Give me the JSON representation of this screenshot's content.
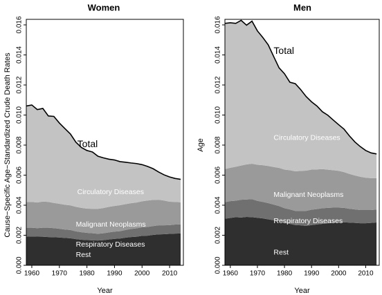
{
  "colors": {
    "rest": "#2f2f2f",
    "respiratory": "#707070",
    "malignant": "#9a9a9a",
    "circulatory": "#c3c3c3",
    "total_line": "#000000",
    "dark_label": "#ffffff",
    "light_label": "#ffffff"
  },
  "chart_data": [
    {
      "type": "area",
      "title": "Women",
      "xlabel": "Year",
      "ylabel": "Cause−Specific Age−Standardized Crude Death Rates",
      "xlim": [
        1958,
        2015
      ],
      "ylim": [
        0,
        0.016
      ],
      "xticks": [
        "1960",
        "1970",
        "1980",
        "1990",
        "2000",
        "2010"
      ],
      "yticks": [
        "0.000",
        "0.002",
        "0.004",
        "0.006",
        "0.008",
        "0.010",
        "0.012",
        "0.014",
        "0.016"
      ],
      "x": [
        1958,
        1960,
        1962,
        1964,
        1966,
        1968,
        1970,
        1972,
        1974,
        1976,
        1978,
        1980,
        1982,
        1984,
        1986,
        1988,
        1990,
        1992,
        1994,
        1996,
        1998,
        2000,
        2002,
        2004,
        2006,
        2008,
        2010,
        2012,
        2014
      ],
      "series": [
        {
          "name": "Rest",
          "values": [
            0.0019,
            0.00192,
            0.00191,
            0.0019,
            0.00188,
            0.00187,
            0.00185,
            0.00182,
            0.0018,
            0.00174,
            0.0017,
            0.00168,
            0.00166,
            0.00165,
            0.00167,
            0.00172,
            0.00176,
            0.00178,
            0.00184,
            0.00188,
            0.0019,
            0.00196,
            0.00197,
            0.00202,
            0.00206,
            0.00207,
            0.00209,
            0.00211,
            0.00212
          ]
        },
        {
          "name": "Respiratory Diseases",
          "values": [
            0.0006,
            0.00058,
            0.00056,
            0.0006,
            0.00062,
            0.0006,
            0.00058,
            0.00056,
            0.00055,
            0.00052,
            0.0005,
            0.00048,
            0.00047,
            0.00045,
            0.00046,
            0.00047,
            0.00048,
            0.00049,
            0.00051,
            0.00054,
            0.00056,
            0.00057,
            0.00058,
            0.00059,
            0.0006,
            0.00059,
            0.00058,
            0.0006,
            0.0006
          ]
        },
        {
          "name": "Malignant Neoplasms",
          "values": [
            0.0017,
            0.00172,
            0.00171,
            0.00174,
            0.00172,
            0.00168,
            0.00166,
            0.00165,
            0.00164,
            0.00163,
            0.00162,
            0.00161,
            0.00163,
            0.00166,
            0.00168,
            0.0017,
            0.00171,
            0.00173,
            0.00172,
            0.00171,
            0.00172,
            0.00173,
            0.00176,
            0.00174,
            0.0017,
            0.00165,
            0.00156,
            0.00151,
            0.00147
          ]
        },
        {
          "name": "Circulatory Diseases",
          "values": [
            0.0064,
            0.00645,
            0.00618,
            0.0062,
            0.00572,
            0.00576,
            0.00538,
            0.00507,
            0.00475,
            0.0043,
            0.00402,
            0.00387,
            0.00378,
            0.0035,
            0.00334,
            0.00317,
            0.00306,
            0.0029,
            0.00279,
            0.00268,
            0.00259,
            0.00244,
            0.00227,
            0.00208,
            0.00185,
            0.00171,
            0.00165,
            0.00156,
            0.00153
          ]
        }
      ],
      "totals": [
        0.0106,
        0.01067,
        0.01036,
        0.01044,
        0.00994,
        0.00991,
        0.00947,
        0.0091,
        0.00874,
        0.00819,
        0.00784,
        0.00764,
        0.00754,
        0.00726,
        0.00715,
        0.00706,
        0.00701,
        0.0069,
        0.00686,
        0.00681,
        0.00677,
        0.0067,
        0.00658,
        0.00643,
        0.00621,
        0.00602,
        0.00588,
        0.00578,
        0.00572
      ],
      "annotations": [
        {
          "text": "Total",
          "x": 1976.5,
          "y": 0.0081,
          "kind": "total"
        },
        {
          "text": "Circulatory Diseases",
          "x": 1976.5,
          "y": 0.00487,
          "kind": "light"
        },
        {
          "text": "Malignant Neoplasms",
          "x": 1976,
          "y": 0.00272,
          "kind": "light"
        },
        {
          "text": "Respiratory Diseases",
          "x": 1976,
          "y": 0.00137,
          "kind": "light"
        },
        {
          "text": "Rest",
          "x": 1976,
          "y": 0.00068,
          "kind": "dark"
        }
      ]
    },
    {
      "type": "area",
      "title": "Men",
      "xlabel": "Year",
      "ylabel": "Age",
      "xlim": [
        1958,
        2015
      ],
      "ylim": [
        0,
        0.016
      ],
      "xticks": [
        "1960",
        "1970",
        "1980",
        "1990",
        "2000",
        "2010"
      ],
      "yticks": [
        "0.000",
        "0.002",
        "0.004",
        "0.006",
        "0.008",
        "0.010",
        "0.012",
        "0.014",
        "0.016"
      ],
      "x": [
        1958,
        1960,
        1962,
        1964,
        1966,
        1968,
        1970,
        1972,
        1974,
        1976,
        1978,
        1980,
        1982,
        1984,
        1986,
        1988,
        1990,
        1992,
        1994,
        1996,
        1998,
        2000,
        2002,
        2004,
        2006,
        2008,
        2010,
        2012,
        2014
      ],
      "series": [
        {
          "name": "Rest",
          "values": [
            0.0031,
            0.00315,
            0.0032,
            0.00318,
            0.00322,
            0.0032,
            0.00316,
            0.00312,
            0.00306,
            0.003,
            0.00294,
            0.00282,
            0.00276,
            0.00268,
            0.00266,
            0.00262,
            0.00268,
            0.00272,
            0.00276,
            0.0028,
            0.00284,
            0.00286,
            0.00286,
            0.00284,
            0.00282,
            0.0028,
            0.0028,
            0.00282,
            0.00285
          ]
        },
        {
          "name": "Respiratory Diseases",
          "values": [
            0.0011,
            0.00112,
            0.0011,
            0.00118,
            0.00116,
            0.0012,
            0.00113,
            0.0011,
            0.00108,
            0.00104,
            0.001,
            0.00098,
            0.00096,
            0.00094,
            0.00096,
            0.001,
            0.00102,
            0.00102,
            0.00104,
            0.00102,
            0.001,
            0.00098,
            0.00096,
            0.00092,
            0.0009,
            0.00088,
            0.00088,
            0.00086,
            0.00086
          ]
        },
        {
          "name": "Malignant Neoplasms",
          "values": [
            0.0022,
            0.00222,
            0.00226,
            0.00228,
            0.00233,
            0.00236,
            0.0024,
            0.00244,
            0.00247,
            0.0025,
            0.00254,
            0.00257,
            0.00261,
            0.00263,
            0.00266,
            0.00268,
            0.00267,
            0.00264,
            0.0026,
            0.00254,
            0.00249,
            0.00245,
            0.00238,
            0.00232,
            0.00226,
            0.00221,
            0.00215,
            0.00212,
            0.00209
          ]
        },
        {
          "name": "Circulatory Diseases",
          "values": [
            0.0097,
            0.00965,
            0.00954,
            0.00966,
            0.00927,
            0.00949,
            0.00891,
            0.0085,
            0.00806,
            0.00736,
            0.00666,
            0.00638,
            0.00585,
            0.00584,
            0.00541,
            0.00493,
            0.00451,
            0.00422,
            0.00382,
            0.00363,
            0.00334,
            0.00307,
            0.00286,
            0.00253,
            0.00223,
            0.00201,
            0.00181,
            0.00168,
            0.00161
          ]
        }
      ],
      "totals": [
        0.0161,
        0.01614,
        0.0161,
        0.0163,
        0.01598,
        0.01625,
        0.0156,
        0.01516,
        0.01467,
        0.0139,
        0.01314,
        0.01275,
        0.01218,
        0.01209,
        0.01169,
        0.01123,
        0.01088,
        0.0106,
        0.01022,
        0.00999,
        0.00967,
        0.00936,
        0.00906,
        0.00861,
        0.00821,
        0.0079,
        0.00764,
        0.00748,
        0.00741
      ],
      "annotations": [
        {
          "text": "Total",
          "x": 1976,
          "y": 0.0143,
          "kind": "total"
        },
        {
          "text": "Circulatory Diseases",
          "x": 1976,
          "y": 0.00848,
          "kind": "light"
        },
        {
          "text": "Malignant Neoplasms",
          "x": 1976,
          "y": 0.00469,
          "kind": "light"
        },
        {
          "text": "Respiratory Diseases",
          "x": 1976,
          "y": 0.00295,
          "kind": "light"
        },
        {
          "text": "Rest",
          "x": 1976,
          "y": 0.00085,
          "kind": "dark"
        }
      ]
    }
  ]
}
